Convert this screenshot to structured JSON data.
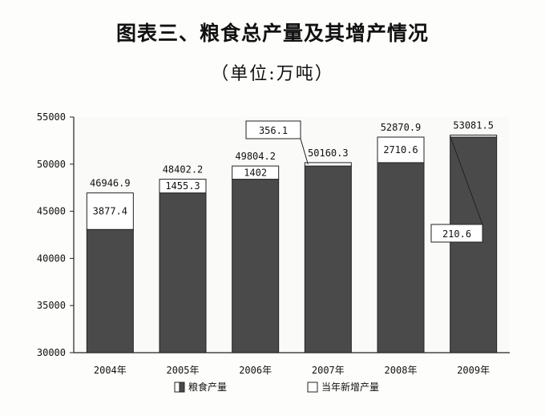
{
  "chart_data": {
    "type": "bar",
    "title": "图表三、粮食总产量及其增产情况",
    "subtitle": "（单位:万吨）",
    "categories": [
      "2004年",
      "2005年",
      "2006年",
      "2007年",
      "2008年",
      "2009年"
    ],
    "ylim": [
      30000,
      55000
    ],
    "yticks": [
      30000,
      35000,
      40000,
      45000,
      50000,
      55000
    ],
    "totals": [
      46946.9,
      48402.2,
      49804.2,
      50160.3,
      52870.9,
      53081.5
    ],
    "total_labels": [
      "46946.9",
      "48402.2",
      "49804.2",
      "50160.3",
      "52870.9",
      "53081.5"
    ],
    "series": [
      {
        "name": "粮食产量",
        "values": [
          43069.5,
          46946.9,
          48402.2,
          49804.2,
          50160.3,
          52870.9
        ],
        "color": "#4a4a4a"
      },
      {
        "name": "当年新增产量",
        "values": [
          3877.4,
          1455.3,
          1402,
          356.1,
          2710.6,
          210.6
        ],
        "labels": [
          "3877.4",
          "1455.3",
          "1402",
          "356.1",
          "2710.6",
          "210.6"
        ],
        "color": "#ffffff"
      }
    ],
    "legend_position": "bottom",
    "grid": false
  }
}
